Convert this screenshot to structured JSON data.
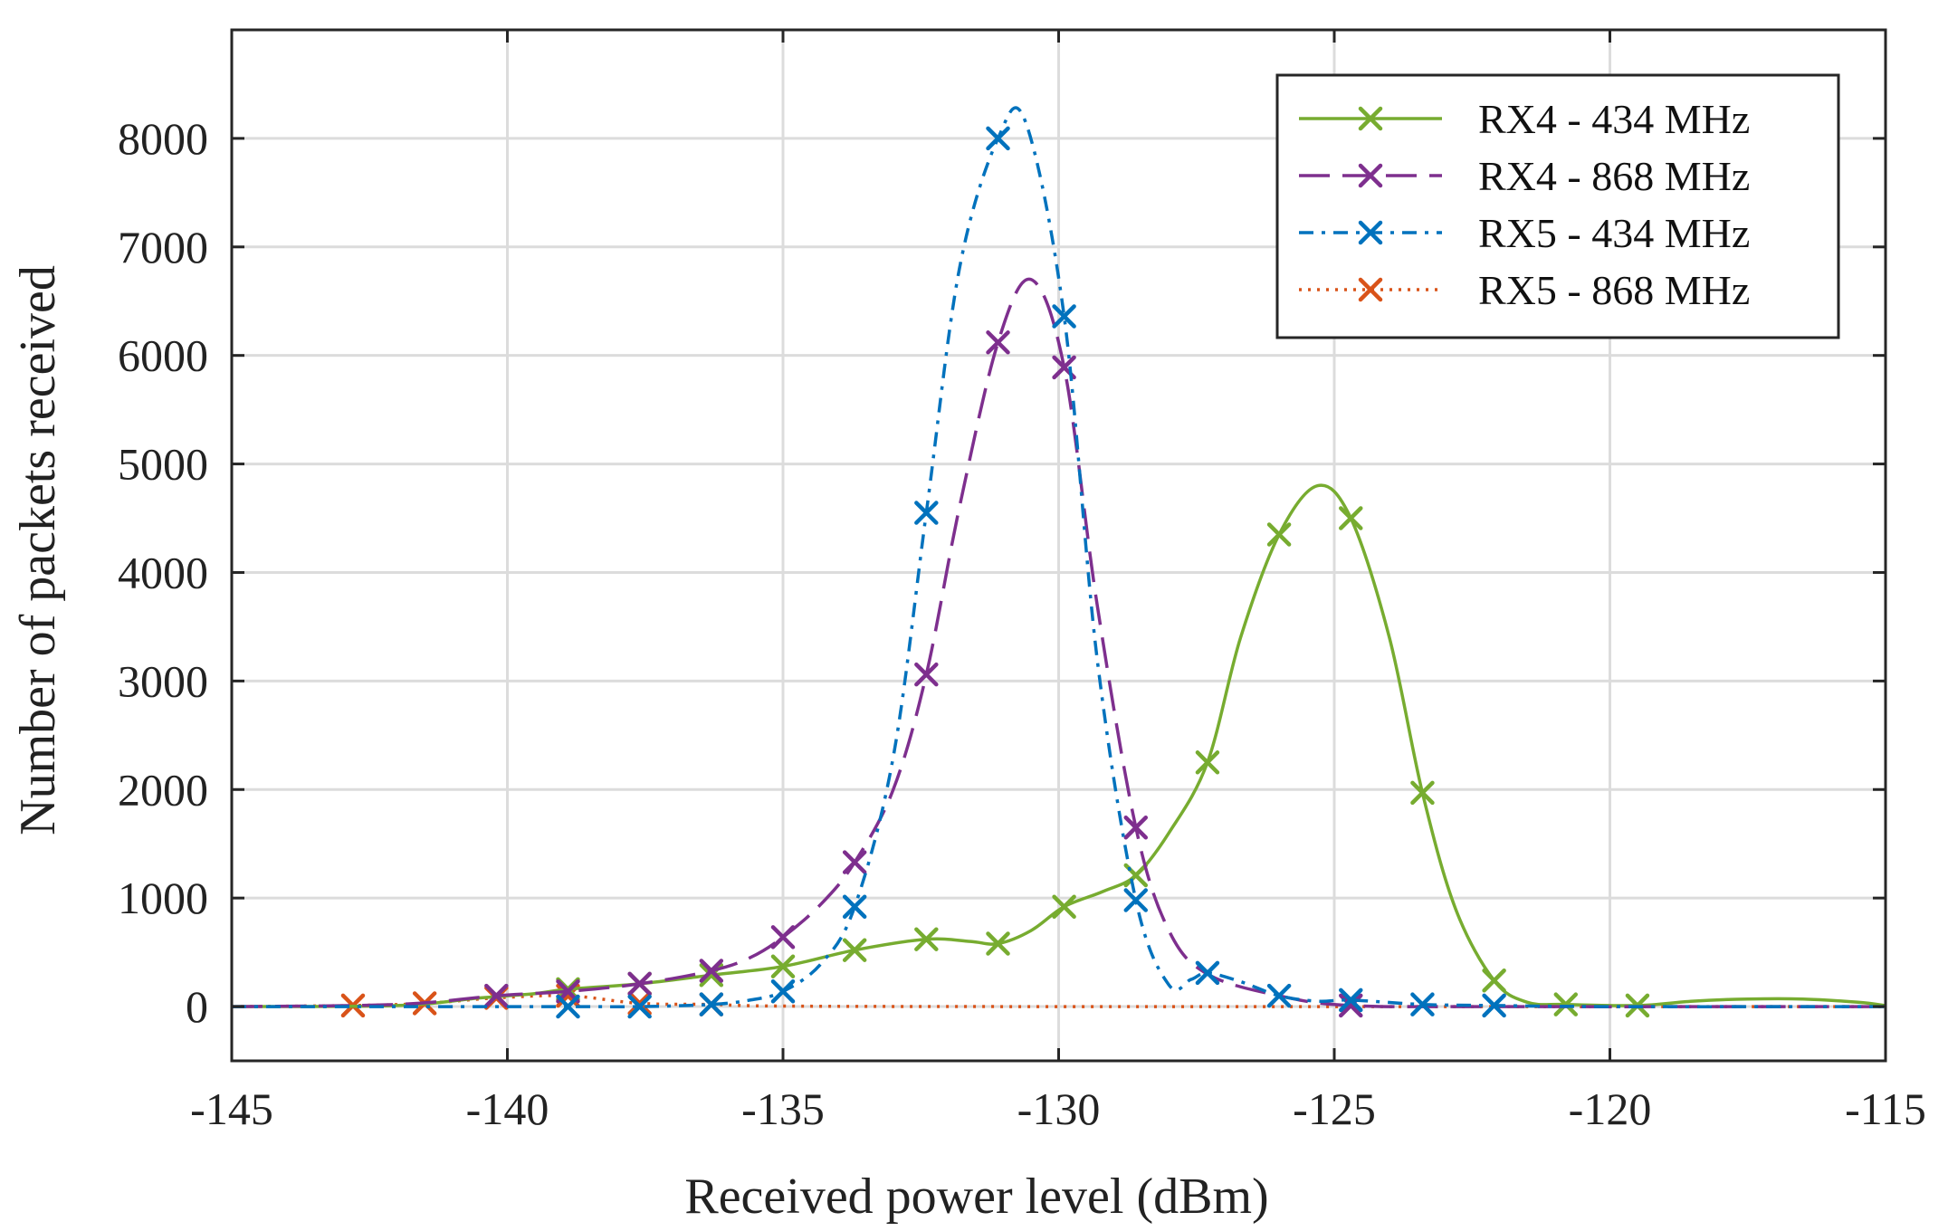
{
  "chart_data": {
    "type": "line",
    "title": "",
    "xlabel": "Received power level (dBm)",
    "ylabel": "Number of packets received",
    "xlim": [
      -145,
      -115
    ],
    "ylim": [
      -500,
      9000
    ],
    "xticks": [
      -145,
      -140,
      -135,
      -130,
      -125,
      -120,
      -115
    ],
    "xtick_labels": [
      "-145",
      "-140",
      "-135",
      "-130",
      "-125",
      "-120",
      "-115"
    ],
    "yticks": [
      0,
      1000,
      2000,
      3000,
      4000,
      5000,
      6000,
      7000,
      8000
    ],
    "ytick_labels": [
      "0",
      "1000",
      "2000",
      "3000",
      "4000",
      "5000",
      "6000",
      "7000",
      "8000"
    ],
    "grid": true,
    "legend_position": "top-right",
    "series": [
      {
        "name": "RX4 - 434 MHz",
        "color": "#77ac30",
        "dash": "solid",
        "markers": [
          [
            -138.9,
            160
          ],
          [
            -137.6,
            210
          ],
          [
            -136.3,
            290
          ],
          [
            -135.0,
            370
          ],
          [
            -133.7,
            520
          ],
          [
            -132.4,
            620
          ],
          [
            -131.1,
            580
          ],
          [
            -129.9,
            920
          ],
          [
            -128.6,
            1210
          ],
          [
            -127.3,
            2250
          ],
          [
            -126.0,
            4350
          ],
          [
            -124.7,
            4500
          ],
          [
            -123.4,
            1970
          ],
          [
            -122.1,
            240
          ],
          [
            -120.8,
            20
          ],
          [
            -119.5,
            10
          ]
        ],
        "curve": [
          [
            -145,
            0
          ],
          [
            -142,
            10
          ],
          [
            -140.5,
            80
          ],
          [
            -139.5,
            120
          ],
          [
            -138.9,
            160
          ],
          [
            -137.6,
            210
          ],
          [
            -136.3,
            290
          ],
          [
            -135.0,
            370
          ],
          [
            -133.7,
            520
          ],
          [
            -132.4,
            620
          ],
          [
            -131.6,
            600
          ],
          [
            -131.1,
            580
          ],
          [
            -130.5,
            700
          ],
          [
            -129.9,
            920
          ],
          [
            -129.2,
            1060
          ],
          [
            -128.6,
            1210
          ],
          [
            -128.0,
            1600
          ],
          [
            -127.3,
            2250
          ],
          [
            -126.7,
            3400
          ],
          [
            -126.0,
            4350
          ],
          [
            -125.3,
            4800
          ],
          [
            -124.7,
            4500
          ],
          [
            -124.0,
            3400
          ],
          [
            -123.4,
            1970
          ],
          [
            -122.8,
            900
          ],
          [
            -122.1,
            240
          ],
          [
            -121.5,
            40
          ],
          [
            -120.8,
            20
          ],
          [
            -119.5,
            10
          ],
          [
            -118.5,
            50
          ],
          [
            -117.5,
            70
          ],
          [
            -116.5,
            70
          ],
          [
            -115.5,
            40
          ],
          [
            -115,
            10
          ]
        ]
      },
      {
        "name": "RX4 - 868 MHz",
        "color": "#7e2f8e",
        "dash": "long-dash",
        "markers": [
          [
            -140.2,
            100
          ],
          [
            -138.9,
            140
          ],
          [
            -137.6,
            210
          ],
          [
            -136.3,
            330
          ],
          [
            -135.0,
            640
          ],
          [
            -133.7,
            1330
          ],
          [
            -132.4,
            3060
          ],
          [
            -131.1,
            6120
          ],
          [
            -129.9,
            5890
          ],
          [
            -128.6,
            1650
          ],
          [
            -124.7,
            10
          ]
        ],
        "curve": [
          [
            -145,
            0
          ],
          [
            -142,
            20
          ],
          [
            -140.2,
            100
          ],
          [
            -138.9,
            140
          ],
          [
            -137.6,
            210
          ],
          [
            -136.3,
            330
          ],
          [
            -135.6,
            450
          ],
          [
            -135.0,
            640
          ],
          [
            -134.3,
            950
          ],
          [
            -133.7,
            1330
          ],
          [
            -133.0,
            2000
          ],
          [
            -132.4,
            3060
          ],
          [
            -131.8,
            4600
          ],
          [
            -131.1,
            6120
          ],
          [
            -130.5,
            6700
          ],
          [
            -129.9,
            5890
          ],
          [
            -129.3,
            3700
          ],
          [
            -128.6,
            1650
          ],
          [
            -128.0,
            700
          ],
          [
            -127.3,
            300
          ],
          [
            -126.0,
            100
          ],
          [
            -124.7,
            10
          ],
          [
            -122,
            0
          ],
          [
            -115,
            0
          ]
        ]
      },
      {
        "name": "RX5 - 434 MHz",
        "color": "#0072bd",
        "dash": "dash-dot",
        "markers": [
          [
            -138.9,
            0
          ],
          [
            -137.6,
            0
          ],
          [
            -136.3,
            20
          ],
          [
            -135.0,
            140
          ],
          [
            -133.7,
            920
          ],
          [
            -132.4,
            4550
          ],
          [
            -131.1,
            8000
          ],
          [
            -129.9,
            6360
          ],
          [
            -128.6,
            980
          ],
          [
            -127.3,
            310
          ],
          [
            -126.0,
            100
          ],
          [
            -124.7,
            60
          ],
          [
            -123.4,
            20
          ],
          [
            -122.1,
            10
          ]
        ],
        "curve": [
          [
            -145,
            0
          ],
          [
            -139,
            0
          ],
          [
            -137.6,
            0
          ],
          [
            -136.3,
            20
          ],
          [
            -135.6,
            60
          ],
          [
            -135.0,
            140
          ],
          [
            -134.3,
            400
          ],
          [
            -133.7,
            920
          ],
          [
            -133.0,
            2300
          ],
          [
            -132.4,
            4550
          ],
          [
            -131.8,
            6800
          ],
          [
            -131.1,
            8000
          ],
          [
            -130.6,
            8150
          ],
          [
            -129.9,
            6360
          ],
          [
            -129.3,
            3200
          ],
          [
            -128.6,
            980
          ],
          [
            -128.0,
            200
          ],
          [
            -127.6,
            250
          ],
          [
            -127.3,
            310
          ],
          [
            -126.7,
            230
          ],
          [
            -126.0,
            100
          ],
          [
            -125.3,
            50
          ],
          [
            -124.7,
            60
          ],
          [
            -123.4,
            20
          ],
          [
            -122.1,
            10
          ],
          [
            -120,
            0
          ],
          [
            -115,
            0
          ]
        ]
      },
      {
        "name": "RX5 - 868 MHz",
        "color": "#d95319",
        "dash": "dotted",
        "markers": [
          [
            -142.8,
            10
          ],
          [
            -141.5,
            30
          ],
          [
            -140.2,
            80
          ],
          [
            -138.9,
            100
          ],
          [
            -137.6,
            30
          ],
          [
            -136.3,
            20
          ]
        ],
        "curve": [
          [
            -145,
            0
          ],
          [
            -142.8,
            10
          ],
          [
            -141.5,
            30
          ],
          [
            -140.2,
            80
          ],
          [
            -138.9,
            100
          ],
          [
            -137.6,
            30
          ],
          [
            -136.3,
            20
          ],
          [
            -135,
            5
          ],
          [
            -130,
            0
          ],
          [
            -115,
            0
          ]
        ]
      }
    ]
  }
}
